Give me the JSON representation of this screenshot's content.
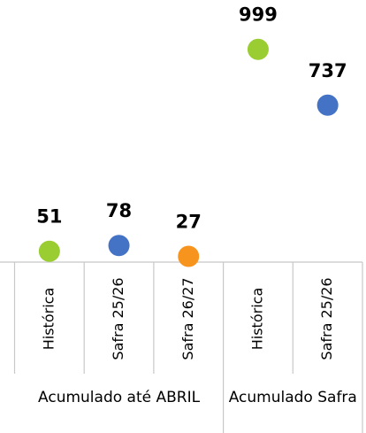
{
  "chart_data": {
    "type": "dot",
    "groups": [
      {
        "label": "Acumulado até ABRIL",
        "categories": [
          "Histórica",
          "Safra 25/26",
          "Safra 26/27"
        ],
        "values": [
          51,
          78,
          27
        ],
        "colors": [
          "#9acd32",
          "#4472c4",
          "#f7941d"
        ]
      },
      {
        "label": "Acumulado Safra",
        "categories": [
          "Histórica",
          "Safra 25/26"
        ],
        "values": [
          999,
          737
        ],
        "colors": [
          "#9acd32",
          "#4472c4"
        ]
      }
    ],
    "ylim": [
      0,
      1200
    ]
  }
}
